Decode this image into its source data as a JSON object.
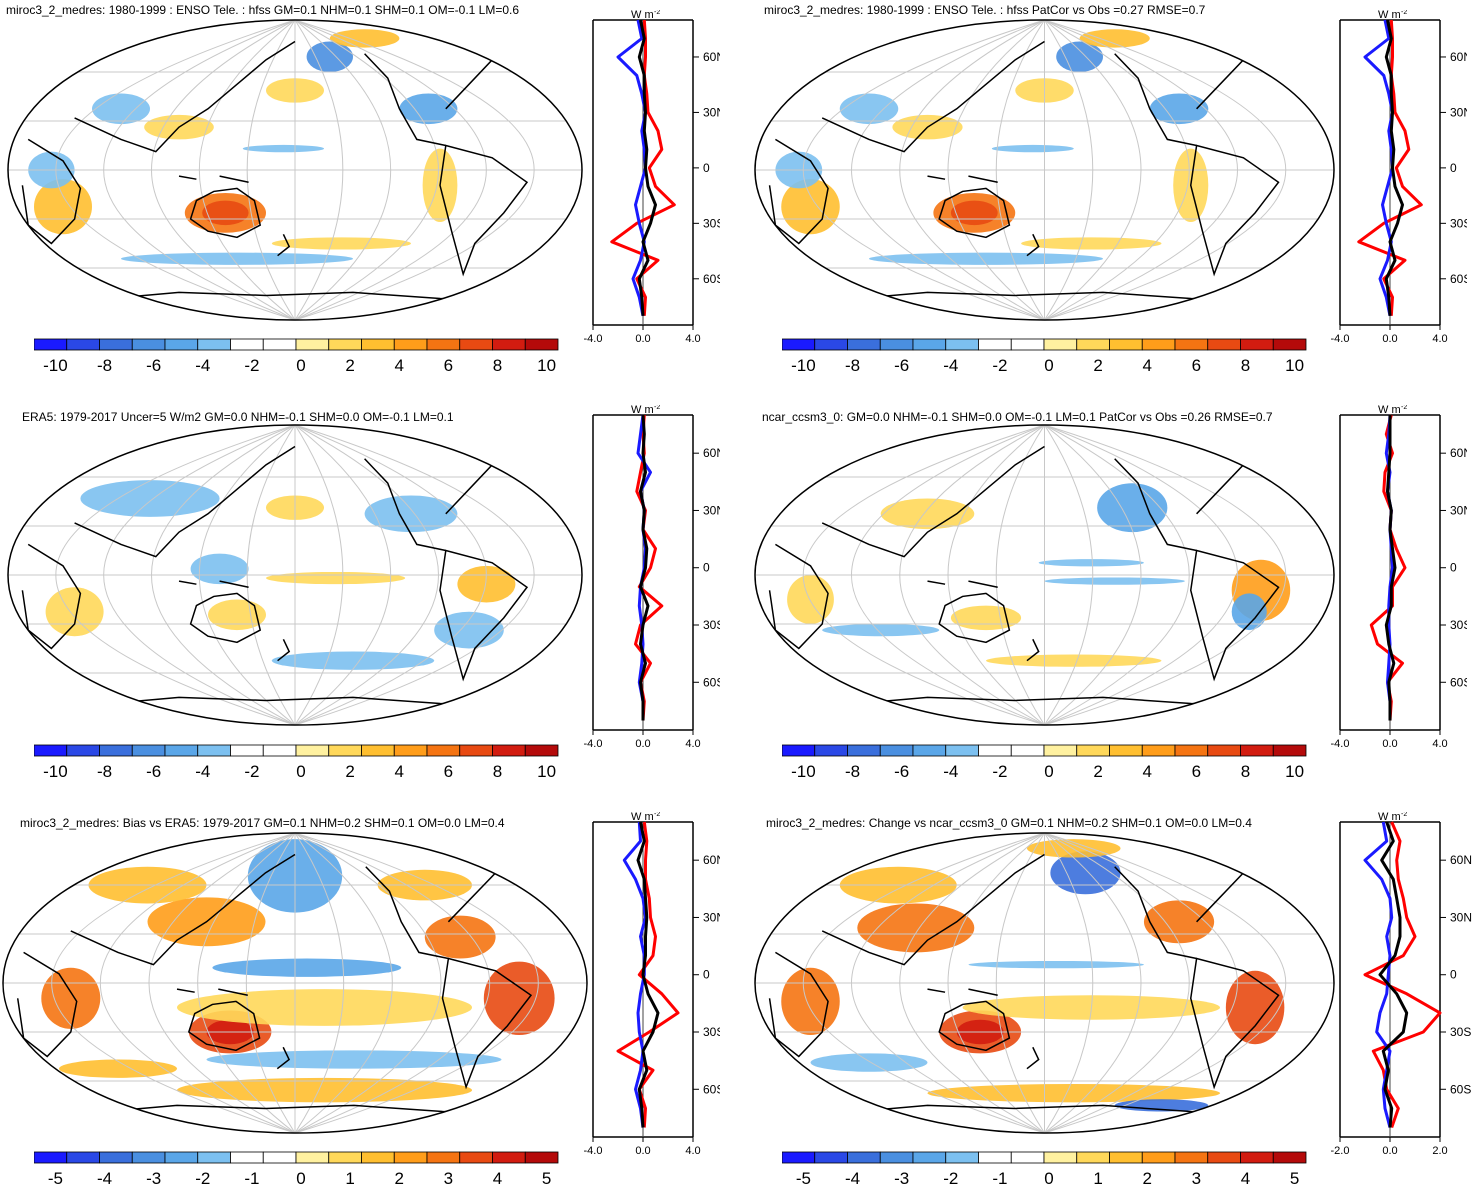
{
  "colors": {
    "scale": [
      "#1a1aff",
      "#2a48e6",
      "#3a6fdc",
      "#4a8fe0",
      "#5aa6e8",
      "#7cc0f0",
      "#ffffff",
      "#ffffff",
      "#fff1a0",
      "#ffd85a",
      "#ffbf30",
      "#ff9d1a",
      "#f57412",
      "#e84a12",
      "#d21c10",
      "#b40a0a"
    ],
    "zonal_red": "#ff0000",
    "zonal_blue": "#1a1aff",
    "zonal_black": "#000000"
  },
  "panels": [
    {
      "title": "miroc3_2_medres: 1980-1999 : ENSO Tele. : hfss GM=0.1 NHM=0.1 SHM=0.1 OM=-0.1 LM=0.6",
      "cbar_labels": [
        "-10",
        "-8",
        "-6",
        "-4",
        "-2",
        "0",
        "2",
        "4",
        "6",
        "8",
        "10"
      ],
      "zonal": {
        "unit_w": "W",
        "unit_m": "m",
        "unit_exp": "-2",
        "lat_labels": [
          "60N",
          "30N",
          "0",
          "30S",
          "60S"
        ],
        "x_labels": [
          "-4.0",
          "0.0",
          "4.0"
        ]
      }
    },
    {
      "title": "miroc3_2_medres: 1980-1999 : ENSO Tele. : hfss PatCor vs Obs =0.27 RMSE=0.7",
      "cbar_labels": [
        "-10",
        "-8",
        "-6",
        "-4",
        "-2",
        "0",
        "2",
        "4",
        "6",
        "8",
        "10"
      ],
      "zonal": {
        "unit_w": "W",
        "unit_m": "m",
        "unit_exp": "-2",
        "lat_labels": [
          "60N",
          "30N",
          "0",
          "30S",
          "60S"
        ],
        "x_labels": [
          "-4.0",
          "0.0",
          "4.0"
        ]
      }
    },
    {
      "title": "ERA5: 1979-2017 Uncer=5 W/m2 GM=0.0 NHM=-0.1 SHM=0.0 OM=-0.1 LM=0.1",
      "cbar_labels": [
        "-10",
        "-8",
        "-6",
        "-4",
        "-2",
        "0",
        "2",
        "4",
        "6",
        "8",
        "10"
      ],
      "zonal": {
        "unit_w": "W",
        "unit_m": "m",
        "unit_exp": "-2",
        "lat_labels": [
          "60N",
          "30N",
          "0",
          "30S",
          "60S"
        ],
        "x_labels": [
          "-4.0",
          "0.0",
          "4.0"
        ]
      }
    },
    {
      "title": "ncar_ccsm3_0: GM=0.0 NHM=-0.1 SHM=0.0 OM=-0.1 LM=0.1 PatCor vs Obs =0.26 RMSE=0.7",
      "cbar_labels": [
        "-10",
        "-8",
        "-6",
        "-4",
        "-2",
        "0",
        "2",
        "4",
        "6",
        "8",
        "10"
      ],
      "zonal": {
        "unit_w": "W",
        "unit_m": "m",
        "unit_exp": "-2",
        "lat_labels": [
          "60N",
          "30N",
          "0",
          "30S",
          "60S"
        ],
        "x_labels": [
          "-4.0",
          "0.0",
          "4.0"
        ]
      }
    },
    {
      "title": "miroc3_2_medres: Bias vs ERA5: 1979-2017 GM=0.1 NHM=0.2 SHM=0.1 OM=0.0 LM=0.4",
      "cbar_labels": [
        "-5",
        "-4",
        "-3",
        "-2",
        "-1",
        "0",
        "1",
        "2",
        "3",
        "4",
        "5"
      ],
      "zonal": {
        "unit_w": "W",
        "unit_m": "m",
        "unit_exp": "-2",
        "lat_labels": [
          "60N",
          "30N",
          "0",
          "30S",
          "60S"
        ],
        "x_labels": [
          "-4.0",
          "0.0",
          "4.0"
        ]
      }
    },
    {
      "title": "miroc3_2_medres: Change vs ncar_ccsm3_0 GM=0.1 NHM=0.2 SHM=0.1 OM=0.0 LM=0.4",
      "cbar_labels": [
        "-5",
        "-4",
        "-3",
        "-2",
        "-1",
        "0",
        "1",
        "2",
        "3",
        "4",
        "5"
      ],
      "zonal": {
        "unit_w": "W",
        "unit_m": "m",
        "unit_exp": "-2",
        "lat_labels": [
          "60N",
          "30N",
          "0",
          "30S",
          "60S"
        ],
        "x_labels": [
          "-2.0",
          "0.0",
          "2.0"
        ]
      }
    }
  ],
  "chart_data": [
    {
      "type": "heatmap",
      "title": "miroc3_2_medres: 1980-1999 : ENSO Tele. : hfss GM=0.1 NHM=0.1 SHM=0.1 OM=-0.1 LM=0.6",
      "colorbar_range": [
        -10,
        10
      ],
      "colorbar_ticks": [
        -10,
        -8,
        -6,
        -4,
        -2,
        0,
        2,
        4,
        6,
        8,
        10
      ],
      "zonal_mean": {
        "xlim": [
          -4.0,
          4.0
        ],
        "xlabel": "W m-2",
        "lat": [
          80,
          70,
          60,
          50,
          40,
          30,
          20,
          10,
          0,
          -10,
          -20,
          -30,
          -40,
          -50,
          -60,
          -70,
          -80
        ],
        "red": [
          0.1,
          0.2,
          0.2,
          0.1,
          0.3,
          0.4,
          1.2,
          1.5,
          0.5,
          1.0,
          2.5,
          -0.5,
          -2.5,
          1.2,
          -0.5,
          0.2,
          0.1
        ],
        "blue": [
          -0.4,
          -0.1,
          -2.0,
          -0.5,
          -0.1,
          0.2,
          -0.1,
          0.1,
          0.2,
          -0.2,
          -0.6,
          -0.3,
          0.1,
          -0.2,
          -0.8,
          -0.3,
          0.0
        ],
        "black": [
          -0.2,
          0.1,
          -0.3,
          0.1,
          0.1,
          0.2,
          0.1,
          0.3,
          0.2,
          0.4,
          1.0,
          0.6,
          0.0,
          0.4,
          -0.3,
          -0.1,
          0.0
        ]
      }
    },
    {
      "type": "heatmap",
      "title": "miroc3_2_medres: 1980-1999 : ENSO Tele. : hfss PatCor vs Obs =0.27 RMSE=0.7",
      "colorbar_range": [
        -10,
        10
      ],
      "colorbar_ticks": [
        -10,
        -8,
        -6,
        -4,
        -2,
        0,
        2,
        4,
        6,
        8,
        10
      ],
      "zonal_mean": {
        "xlim": [
          -4.0,
          4.0
        ],
        "xlabel": "W m-2",
        "lat": [
          80,
          70,
          60,
          50,
          40,
          30,
          20,
          10,
          0,
          -10,
          -20,
          -30,
          -40,
          -50,
          -60,
          -70,
          -80
        ],
        "red": [
          0.1,
          0.2,
          0.2,
          0.1,
          0.3,
          0.4,
          1.2,
          1.5,
          0.5,
          1.0,
          2.5,
          -0.5,
          -2.5,
          1.2,
          -0.5,
          0.2,
          0.1
        ],
        "blue": [
          -0.4,
          -0.1,
          -2.0,
          -0.5,
          -0.1,
          0.2,
          -0.1,
          0.1,
          0.2,
          -0.2,
          -0.6,
          -0.3,
          0.1,
          -0.2,
          -0.8,
          -0.3,
          0.0
        ],
        "black": [
          -0.2,
          0.1,
          -0.3,
          0.1,
          0.1,
          0.2,
          0.1,
          0.3,
          0.2,
          0.4,
          1.0,
          0.6,
          0.0,
          0.4,
          -0.3,
          -0.1,
          0.0
        ]
      }
    },
    {
      "type": "heatmap",
      "title": "ERA5: 1979-2017 Uncer=5 W/m2 GM=0.0 NHM=-0.1 SHM=0.0 OM=-0.1 LM=0.1",
      "colorbar_range": [
        -10,
        10
      ],
      "colorbar_ticks": [
        -10,
        -8,
        -6,
        -4,
        -2,
        0,
        2,
        4,
        6,
        8,
        10
      ],
      "zonal_mean": {
        "xlim": [
          -4.0,
          4.0
        ],
        "xlabel": "W m-2",
        "lat": [
          80,
          70,
          60,
          50,
          40,
          30,
          20,
          10,
          0,
          -10,
          -20,
          -30,
          -40,
          -50,
          -60,
          -70,
          -80
        ],
        "red": [
          0.1,
          0.0,
          0.1,
          -0.2,
          -0.5,
          0.2,
          0.0,
          1.0,
          0.6,
          -0.3,
          1.5,
          -0.2,
          -0.6,
          0.6,
          -0.2,
          0.1,
          0.0
        ],
        "blue": [
          0.0,
          -0.2,
          -0.4,
          0.6,
          -0.2,
          0.1,
          0.0,
          0.2,
          0.1,
          -0.2,
          -0.3,
          -0.1,
          0.0,
          -0.1,
          -0.3,
          0.0,
          0.0
        ],
        "black": [
          0.0,
          0.1,
          0.0,
          0.2,
          -0.2,
          0.1,
          0.0,
          0.3,
          0.2,
          -0.2,
          0.4,
          0.0,
          -0.2,
          0.2,
          -0.2,
          0.0,
          0.0
        ]
      }
    },
    {
      "type": "heatmap",
      "title": "ncar_ccsm3_0: GM=0.0 NHM=-0.1 SHM=0.0 OM=-0.1 LM=0.1 PatCor vs Obs =0.26 RMSE=0.7",
      "colorbar_range": [
        -10,
        10
      ],
      "colorbar_ticks": [
        -10,
        -8,
        -6,
        -4,
        -2,
        0,
        2,
        4,
        6,
        8,
        10
      ],
      "zonal_mean": {
        "xlim": [
          -4.0,
          4.0
        ],
        "xlabel": "W m-2",
        "lat": [
          80,
          70,
          60,
          50,
          40,
          30,
          20,
          10,
          0,
          -10,
          -20,
          -30,
          -40,
          -50,
          -60,
          -70,
          -80
        ],
        "red": [
          0.1,
          -0.3,
          0.2,
          -0.4,
          -0.5,
          0.1,
          0.0,
          0.5,
          1.2,
          0.2,
          0.2,
          -1.5,
          -1.0,
          1.0,
          -0.2,
          0.1,
          0.0
        ],
        "blue": [
          0.0,
          -0.1,
          -0.3,
          0.0,
          -0.2,
          0.1,
          0.0,
          0.1,
          0.2,
          0.0,
          -0.1,
          -0.1,
          0.0,
          -0.1,
          -0.2,
          0.0,
          0.0
        ],
        "black": [
          0.0,
          0.0,
          0.0,
          -0.1,
          -0.2,
          0.1,
          0.0,
          0.2,
          0.4,
          0.1,
          0.1,
          -0.3,
          -0.1,
          0.3,
          -0.1,
          0.0,
          0.0
        ]
      }
    },
    {
      "type": "heatmap",
      "title": "miroc3_2_medres: Bias vs ERA5: 1979-2017 GM=0.1 NHM=0.2 SHM=0.1 OM=0.0 LM=0.4",
      "colorbar_range": [
        -5,
        5
      ],
      "colorbar_ticks": [
        -5,
        -4,
        -3,
        -2,
        -1,
        0,
        1,
        2,
        3,
        4,
        5
      ],
      "zonal_mean": {
        "xlim": [
          -4.0,
          4.0
        ],
        "xlabel": "W m-2",
        "lat": [
          80,
          70,
          60,
          50,
          40,
          30,
          20,
          10,
          0,
          -10,
          -20,
          -30,
          -40,
          -50,
          -60,
          -70,
          -80
        ],
        "red": [
          0.1,
          0.3,
          0.2,
          0.2,
          0.5,
          0.6,
          1.0,
          0.8,
          -0.3,
          1.5,
          2.8,
          0.5,
          -2.0,
          0.8,
          -0.3,
          0.2,
          0.1
        ],
        "blue": [
          -0.3,
          -0.2,
          -1.5,
          -0.6,
          0.0,
          0.2,
          -0.2,
          0.1,
          0.1,
          -0.2,
          -0.4,
          -0.3,
          0.0,
          -0.2,
          -0.6,
          -0.2,
          0.0
        ],
        "black": [
          -0.2,
          0.1,
          -0.4,
          0.1,
          0.2,
          0.3,
          0.2,
          0.2,
          0.0,
          0.4,
          1.2,
          0.8,
          0.0,
          0.3,
          -0.3,
          -0.1,
          0.0
        ]
      }
    },
    {
      "type": "heatmap",
      "title": "miroc3_2_medres: Change vs ncar_ccsm3_0 GM=0.1 NHM=0.2 SHM=0.1 OM=0.0 LM=0.4",
      "colorbar_range": [
        -5,
        5
      ],
      "colorbar_ticks": [
        -5,
        -4,
        -3,
        -2,
        -1,
        0,
        1,
        2,
        3,
        4,
        5
      ],
      "zonal_mean": {
        "xlim": [
          -3.0,
          3.0
        ],
        "xlabel": "W m-2",
        "lat": [
          80,
          70,
          60,
          50,
          40,
          30,
          20,
          10,
          0,
          -10,
          -20,
          -30,
          -40,
          -50,
          -60,
          -70,
          -80
        ],
        "red": [
          0.1,
          0.6,
          0.4,
          0.5,
          0.8,
          1.0,
          1.5,
          0.8,
          -1.5,
          1.0,
          3.0,
          2.0,
          -1.0,
          -0.4,
          -0.2,
          0.5,
          0.1
        ],
        "blue": [
          -0.4,
          -0.2,
          -1.5,
          -0.5,
          0.0,
          0.1,
          -0.2,
          0.0,
          -0.1,
          -0.2,
          -0.6,
          -0.8,
          0.0,
          -0.2,
          -0.4,
          -0.3,
          0.0
        ],
        "black": [
          -0.2,
          0.2,
          -0.5,
          0.2,
          0.4,
          0.6,
          0.6,
          0.3,
          -0.6,
          0.4,
          1.0,
          0.8,
          -0.4,
          -0.1,
          -0.3,
          0.1,
          0.0
        ]
      }
    }
  ]
}
